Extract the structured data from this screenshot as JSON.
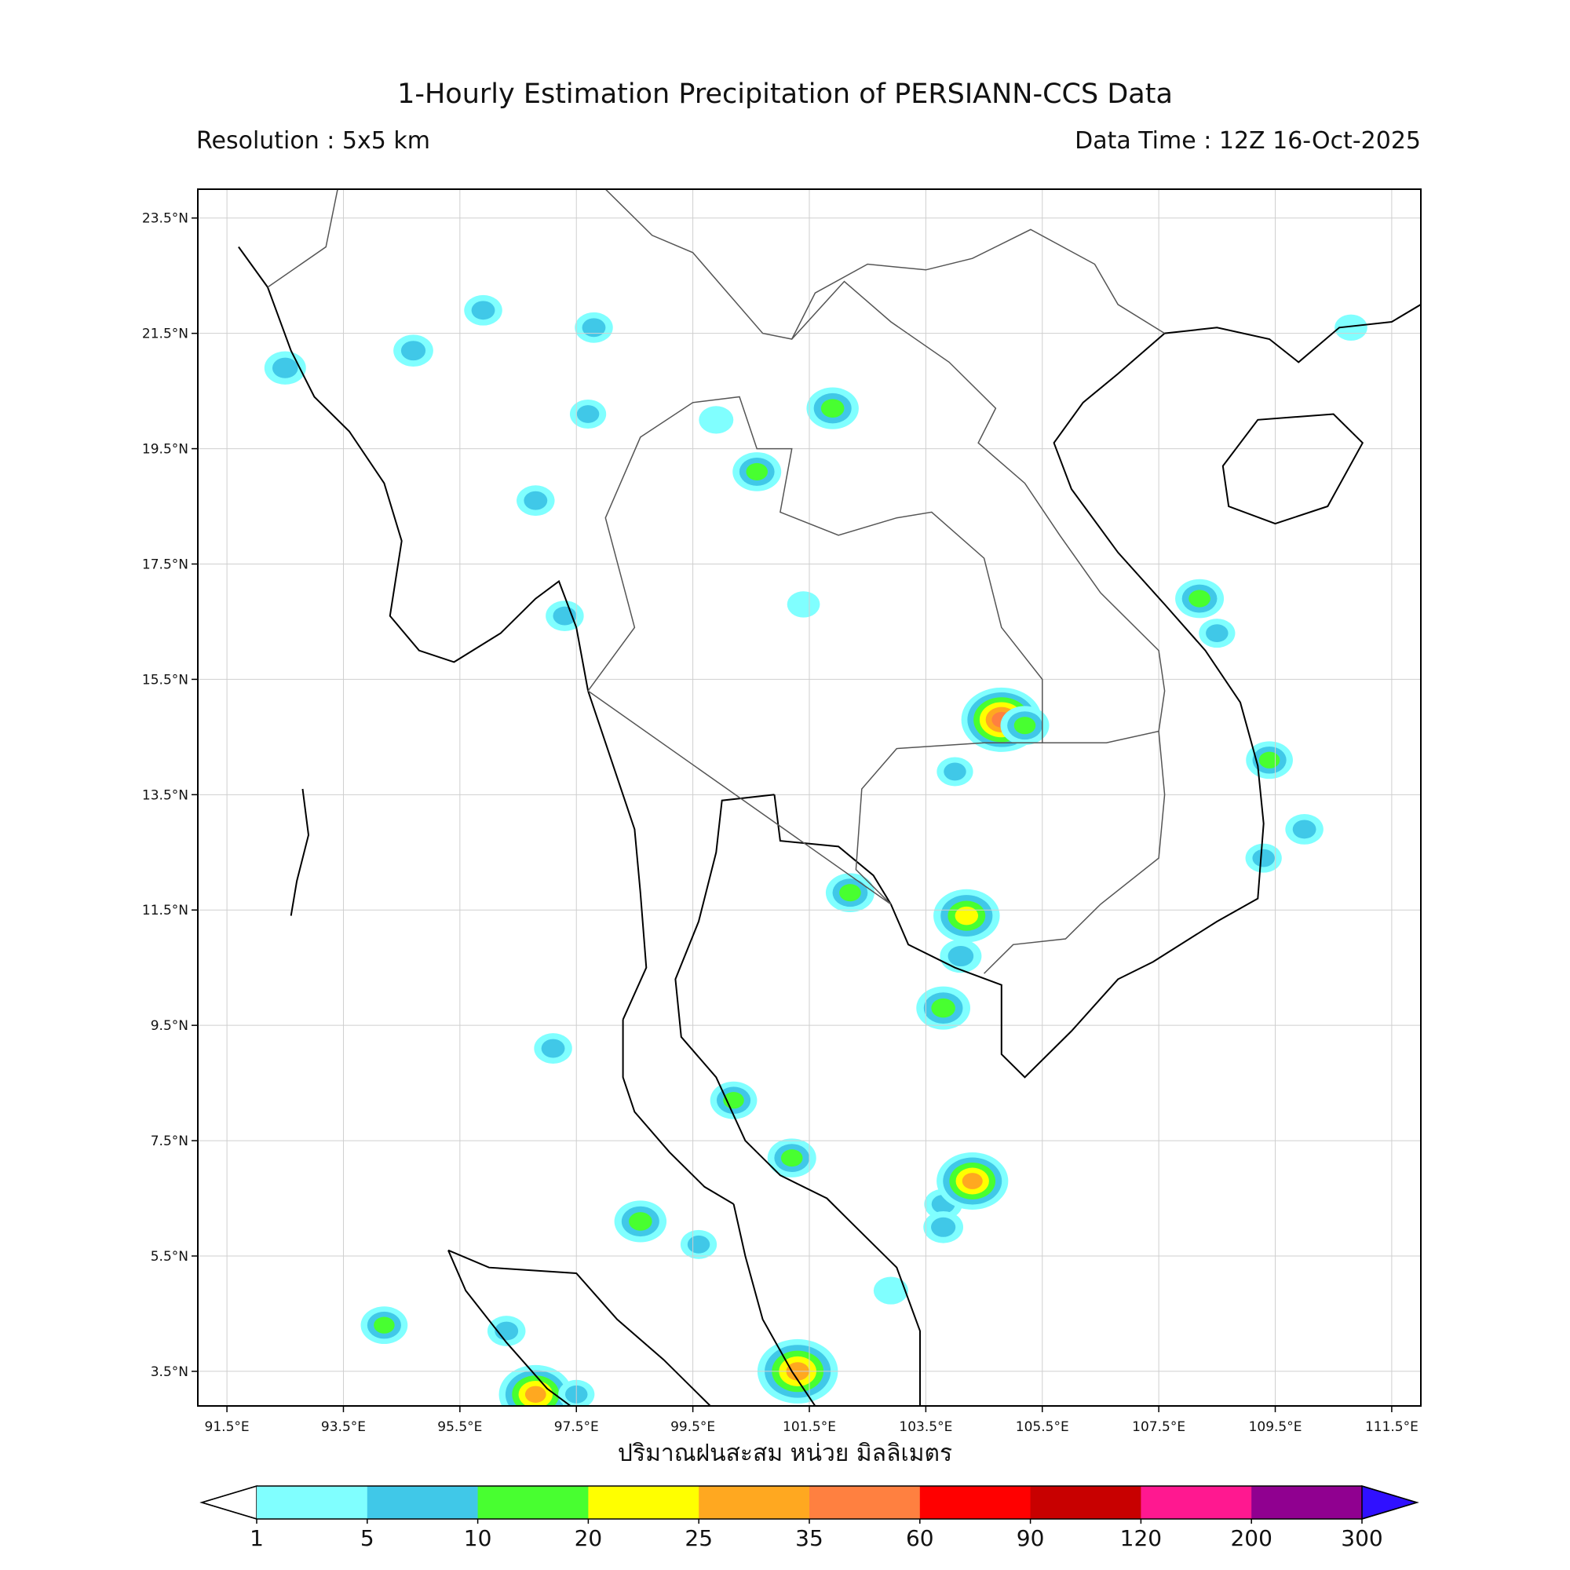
{
  "title": "1-Hourly Estimation Precipitation of PERSIANN-CCS Data",
  "resolution": "Resolution : 5x5 km",
  "data_time": "Data Time : 12Z 16-Oct-2025",
  "xlabel": "ปริมาณฝนสะสม หน่วย มิลลิเมตร",
  "map": {
    "lon_range": [
      91.0,
      112.0
    ],
    "lat_range": [
      2.9,
      24.0
    ],
    "lon_ticks": [
      "91.5°E",
      "93.5°E",
      "95.5°E",
      "97.5°E",
      "99.5°E",
      "101.5°E",
      "103.5°E",
      "105.5°E",
      "107.5°E",
      "109.5°E",
      "111.5°E"
    ],
    "lon_values": [
      91.5,
      93.5,
      95.5,
      97.5,
      99.5,
      101.5,
      103.5,
      105.5,
      107.5,
      109.5,
      111.5
    ],
    "lat_ticks": [
      "23.5°N",
      "21.5°N",
      "19.5°N",
      "17.5°N",
      "15.5°N",
      "13.5°N",
      "11.5°N",
      "9.5°N",
      "7.5°N",
      "5.5°N",
      "3.5°N"
    ],
    "lat_values": [
      23.5,
      21.5,
      19.5,
      17.5,
      15.5,
      13.5,
      11.5,
      9.5,
      7.5,
      5.5,
      3.5
    ],
    "grid": true
  },
  "legend": {
    "labels": [
      "1",
      "5",
      "10",
      "20",
      "25",
      "35",
      "60",
      "90",
      "120",
      "200",
      "300"
    ],
    "colors": [
      "#80ffff",
      "#40c8e8",
      "#48ff30",
      "#ffff00",
      "#ffa820",
      "#ff8040",
      "#ff0000",
      "#c80000",
      "#ff1890",
      "#900090"
    ],
    "under_color": "#ffffff",
    "over_color": "#3010ff"
  },
  "rain_cells": [
    {
      "lon": 95.9,
      "lat": 21.9,
      "mm": 6
    },
    {
      "lon": 94.7,
      "lat": 21.2,
      "mm": 7
    },
    {
      "lon": 97.8,
      "lat": 21.6,
      "mm": 6
    },
    {
      "lon": 97.7,
      "lat": 20.1,
      "mm": 5
    },
    {
      "lon": 99.9,
      "lat": 20.0,
      "mm": 4
    },
    {
      "lon": 101.9,
      "lat": 20.2,
      "mm": 14
    },
    {
      "lon": 100.6,
      "lat": 19.1,
      "mm": 12
    },
    {
      "lon": 96.8,
      "lat": 18.6,
      "mm": 6
    },
    {
      "lon": 92.5,
      "lat": 20.9,
      "mm": 8
    },
    {
      "lon": 97.3,
      "lat": 16.6,
      "mm": 6
    },
    {
      "lon": 101.4,
      "lat": 16.8,
      "mm": 3
    },
    {
      "lon": 104.8,
      "lat": 14.8,
      "mm": 40
    },
    {
      "lon": 105.2,
      "lat": 14.7,
      "mm": 12
    },
    {
      "lon": 104.0,
      "lat": 13.9,
      "mm": 5
    },
    {
      "lon": 102.2,
      "lat": 11.8,
      "mm": 12
    },
    {
      "lon": 104.2,
      "lat": 11.4,
      "mm": 22
    },
    {
      "lon": 104.1,
      "lat": 10.7,
      "mm": 8
    },
    {
      "lon": 103.8,
      "lat": 9.8,
      "mm": 15
    },
    {
      "lon": 97.1,
      "lat": 9.1,
      "mm": 6
    },
    {
      "lon": 100.2,
      "lat": 8.2,
      "mm": 11
    },
    {
      "lon": 101.2,
      "lat": 7.2,
      "mm": 12
    },
    {
      "lon": 103.8,
      "lat": 6.4,
      "mm": 6
    },
    {
      "lon": 104.3,
      "lat": 6.8,
      "mm": 25
    },
    {
      "lon": 103.8,
      "lat": 6.0,
      "mm": 7
    },
    {
      "lon": 98.6,
      "lat": 6.1,
      "mm": 14
    },
    {
      "lon": 99.6,
      "lat": 5.7,
      "mm": 5
    },
    {
      "lon": 96.3,
      "lat": 4.2,
      "mm": 6
    },
    {
      "lon": 94.2,
      "lat": 4.3,
      "mm": 11
    },
    {
      "lon": 96.8,
      "lat": 3.1,
      "mm": 26
    },
    {
      "lon": 97.5,
      "lat": 3.1,
      "mm": 5
    },
    {
      "lon": 101.3,
      "lat": 3.5,
      "mm": 33
    },
    {
      "lon": 108.5,
      "lat": 16.3,
      "mm": 5
    },
    {
      "lon": 108.2,
      "lat": 16.9,
      "mm": 12
    },
    {
      "lon": 109.4,
      "lat": 14.1,
      "mm": 11
    },
    {
      "lon": 110.0,
      "lat": 12.9,
      "mm": 6
    },
    {
      "lon": 109.3,
      "lat": 12.4,
      "mm": 5
    },
    {
      "lon": 110.8,
      "lat": 21.6,
      "mm": 3
    },
    {
      "lon": 102.9,
      "lat": 4.9,
      "mm": 4
    }
  ]
}
